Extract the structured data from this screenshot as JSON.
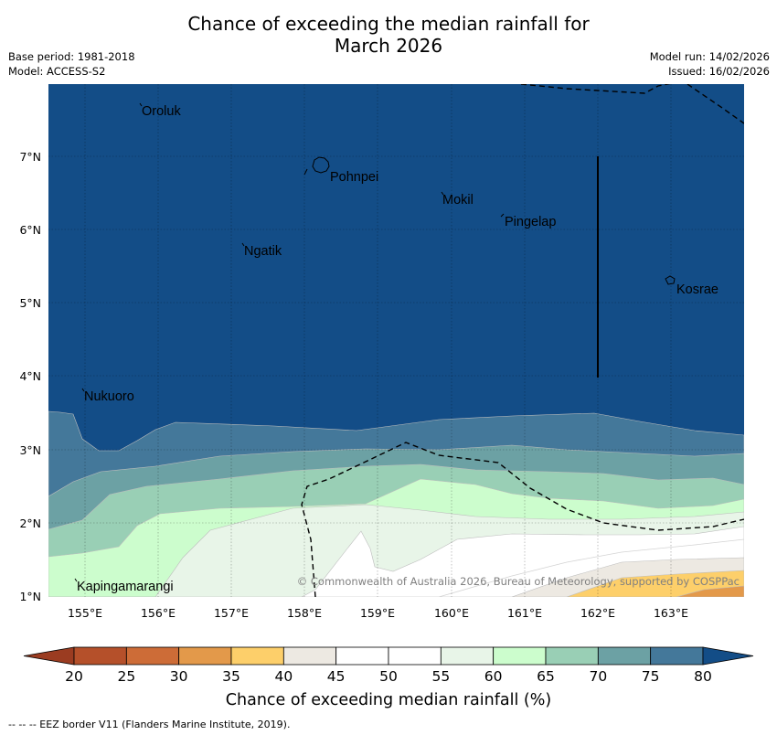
{
  "title_line1": "Chance of exceeding the median rainfall for",
  "title_line2": "March 2026",
  "base_period": "Base period: 1981-2018",
  "model": "Model: ACCESS-S2",
  "model_run": "Model run: 14/02/2026",
  "issued": "Issued: 16/02/2026",
  "copyright": "© Commonwealth of Australia 2026, Bureau of Meteorology, supported by COSPPac",
  "lon_ticks": [
    "155°E",
    "156°E",
    "157°E",
    "158°E",
    "159°E",
    "160°E",
    "161°E",
    "162°E",
    "163°E"
  ],
  "lat_ticks": [
    "7°N",
    "6°N",
    "5°N",
    "4°N",
    "3°N",
    "2°N",
    "1°N"
  ],
  "places": [
    "Oroluk",
    "Pohnpei",
    "Mokil",
    "Pingelap",
    "Ngatik",
    "Kosrae",
    "Nukuoro",
    "Kapingamarangi"
  ],
  "colorbar": {
    "ticks": [
      "20",
      "25",
      "30",
      "35",
      "40",
      "45",
      "50",
      "55",
      "60",
      "65",
      "70",
      "75",
      "80"
    ],
    "colors": [
      "#b5502a",
      "#cd6c37",
      "#e3994a",
      "#fdcf6a",
      "#ede9e2",
      "#ffffff",
      "#ffffff",
      "#e8f5e8",
      "#ccfdcd",
      "#99cfb5",
      "#6ca1a4",
      "#44789a",
      "#134d87"
    ],
    "label": "Chance of exceeding median rainfall (%)"
  },
  "map_colors": {
    "c80": "#134d87",
    "c75": "#44789a",
    "c70": "#6ca1a4",
    "c65": "#99cfb5",
    "c60": "#ccfdcd",
    "c55": "#e8f5e8",
    "c50": "#ffffff",
    "c40": "#ede9e2",
    "c35": "#fdcf6a",
    "c30": "#e3994a"
  },
  "eez_note": "-- -- -- EEZ border V11 (Flanders Marine Institute, 2019)."
}
